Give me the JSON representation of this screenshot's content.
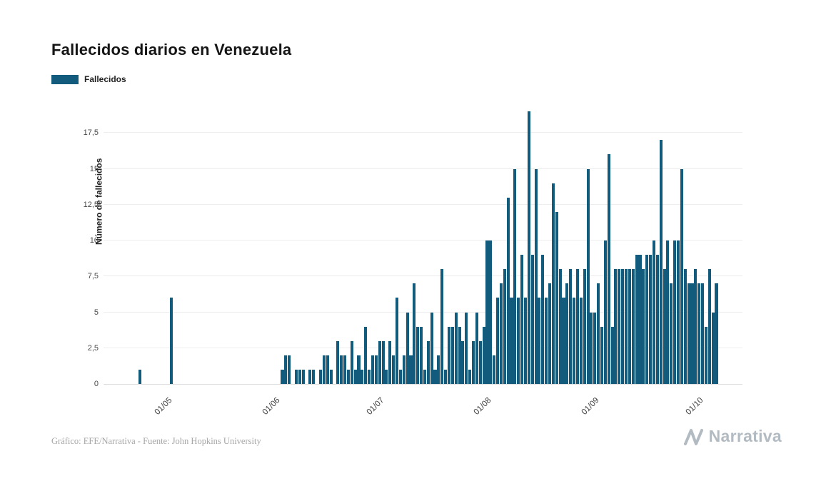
{
  "page": {
    "title": "Fallecidos diarios en Venezuela"
  },
  "legend": {
    "label": "Fallecidos"
  },
  "footer": {
    "credit": "Gráfico: EFE/Narrativa - Fuente: John Hopkins University"
  },
  "brand": {
    "name": "Narrativa",
    "icon": "narrativa-chevron-icon"
  },
  "colors": {
    "bar": "#135b7d",
    "grid": "#ededed",
    "axis_text": "#4a4a4a",
    "footer_text": "#a5a5a5",
    "brand": "#b3bbc2"
  },
  "chart_data": {
    "type": "bar",
    "title": "Fallecidos diarios en Venezuela",
    "xlabel": "",
    "ylabel": "Número de fallecidos",
    "series_name": "Fallecidos",
    "legend_position": "top-left",
    "grid": true,
    "ylim": [
      0,
      19.8
    ],
    "yticks": [
      {
        "value": 0,
        "label": "0"
      },
      {
        "value": 2.5,
        "label": "2,5"
      },
      {
        "value": 5,
        "label": "5"
      },
      {
        "value": 7.5,
        "label": "7,5"
      },
      {
        "value": 10,
        "label": "10"
      },
      {
        "value": 12.5,
        "label": "12,5"
      },
      {
        "value": 15,
        "label": "15"
      },
      {
        "value": 17.5,
        "label": "17,5"
      }
    ],
    "xticks": [
      {
        "index": 18,
        "label": "01/05"
      },
      {
        "index": 49,
        "label": "01/06"
      },
      {
        "index": 79,
        "label": "01/07"
      },
      {
        "index": 110,
        "label": "01/08"
      },
      {
        "index": 141,
        "label": "01/09"
      },
      {
        "index": 171,
        "label": "01/10"
      }
    ],
    "values": [
      0,
      0,
      0,
      0,
      0,
      0,
      0,
      0,
      0,
      0,
      1,
      0,
      0,
      0,
      0,
      0,
      0,
      0,
      0,
      6,
      0,
      0,
      0,
      0,
      0,
      0,
      0,
      0,
      0,
      0,
      0,
      0,
      0,
      0,
      0,
      0,
      0,
      0,
      0,
      0,
      0,
      0,
      0,
      0,
      0,
      0,
      0,
      0,
      0,
      0,
      0,
      1,
      2,
      2,
      0,
      1,
      1,
      1,
      0,
      1,
      1,
      0,
      1,
      2,
      2,
      1,
      0,
      3,
      2,
      2,
      1,
      3,
      1,
      2,
      1,
      4,
      1,
      2,
      2,
      3,
      3,
      1,
      3,
      2,
      6,
      1,
      2,
      5,
      2,
      7,
      4,
      4,
      1,
      3,
      5,
      1,
      2,
      8,
      1,
      4,
      4,
      5,
      4,
      3,
      5,
      1,
      3,
      5,
      3,
      4,
      10,
      10,
      2,
      6,
      7,
      8,
      13,
      6,
      15,
      6,
      9,
      6,
      19,
      9,
      15,
      6,
      9,
      6,
      7,
      14,
      12,
      8,
      6,
      7,
      8,
      6,
      8,
      6,
      8,
      15,
      5,
      5,
      7,
      4,
      10,
      16,
      4,
      8,
      8,
      8,
      8,
      8,
      8,
      9,
      9,
      8,
      9,
      9,
      10,
      9,
      17,
      8,
      10,
      7,
      10,
      10,
      15,
      8,
      7,
      7,
      8,
      7,
      7,
      4,
      8,
      5,
      7,
      0,
      0,
      0,
      0,
      0,
      0,
      0
    ]
  }
}
